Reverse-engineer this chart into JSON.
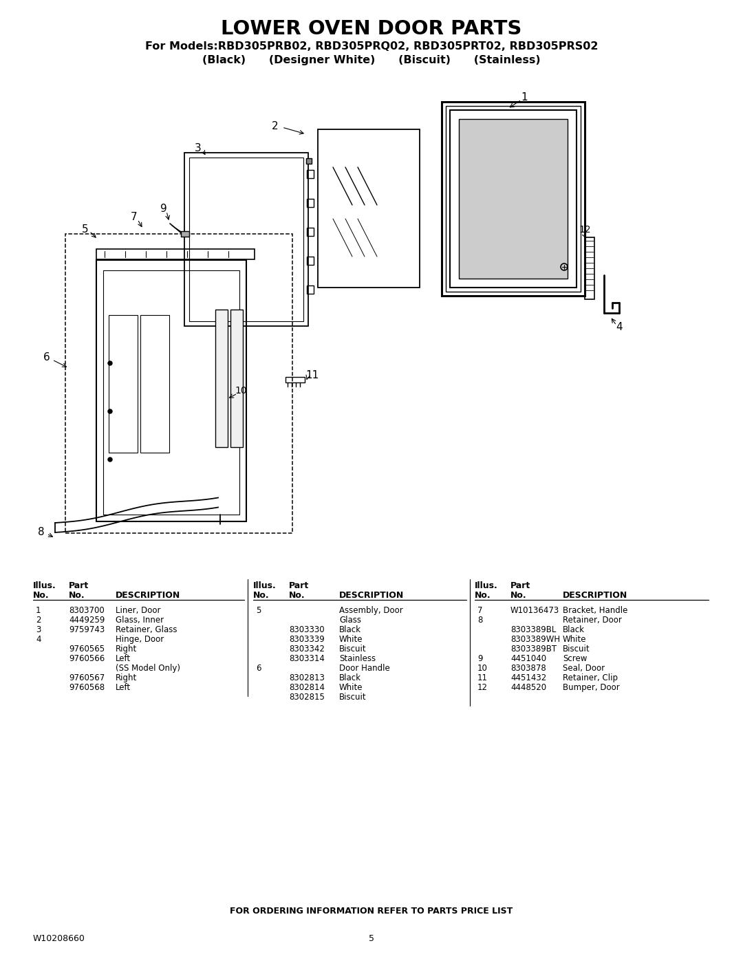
{
  "title_main": "LOWER OVEN DOOR PARTS",
  "title_sub1": "For Models:RBD305PRB02, RBD305PRQ02, RBD305PRT02, RBD305PRS02",
  "title_sub2": "(Black)      (Designer White)      (Biscuit)      (Stainless)",
  "background_color": "#ffffff",
  "page_number": "5",
  "doc_number": "W10208660",
  "footer_text": "FOR ORDERING INFORMATION REFER TO PARTS PRICE LIST",
  "table": {
    "col1": {
      "rows": [
        {
          "illus": "1",
          "part": "8303700",
          "desc": "Liner, Door"
        },
        {
          "illus": "2",
          "part": "4449259",
          "desc": "Glass, Inner"
        },
        {
          "illus": "3",
          "part": "9759743",
          "desc": "Retainer, Glass"
        },
        {
          "illus": "4",
          "part": "",
          "desc": "Hinge, Door"
        },
        {
          "illus": "",
          "part": "9760565",
          "desc": "Right"
        },
        {
          "illus": "",
          "part": "9760566",
          "desc": "Left"
        },
        {
          "illus": "",
          "part": "",
          "desc": "(SS Model Only)"
        },
        {
          "illus": "",
          "part": "9760567",
          "desc": "Right"
        },
        {
          "illus": "",
          "part": "9760568",
          "desc": "Left"
        }
      ]
    },
    "col2": {
      "rows": [
        {
          "illus": "5",
          "part": "",
          "desc": "Assembly, Door"
        },
        {
          "illus": "",
          "part": "",
          "desc": "Glass"
        },
        {
          "illus": "",
          "part": "8303330",
          "desc": "Black"
        },
        {
          "illus": "",
          "part": "8303339",
          "desc": "White"
        },
        {
          "illus": "",
          "part": "8303342",
          "desc": "Biscuit"
        },
        {
          "illus": "",
          "part": "8303314",
          "desc": "Stainless"
        },
        {
          "illus": "6",
          "part": "",
          "desc": "Door Handle"
        },
        {
          "illus": "",
          "part": "8302813",
          "desc": "Black"
        },
        {
          "illus": "",
          "part": "8302814",
          "desc": "White"
        },
        {
          "illus": "",
          "part": "8302815",
          "desc": "Biscuit"
        }
      ]
    },
    "col3": {
      "rows": [
        {
          "illus": "7",
          "part": "W10136473",
          "desc": "Bracket, Handle"
        },
        {
          "illus": "8",
          "part": "",
          "desc": "Retainer, Door"
        },
        {
          "illus": "",
          "part": "8303389BL",
          "desc": "Black"
        },
        {
          "illus": "",
          "part": "8303389WH",
          "desc": "White"
        },
        {
          "illus": "",
          "part": "8303389BT",
          "desc": "Biscuit"
        },
        {
          "illus": "9",
          "part": "4451040",
          "desc": "Screw"
        },
        {
          "illus": "10",
          "part": "8303878",
          "desc": "Seal, Door"
        },
        {
          "illus": "11",
          "part": "4451432",
          "desc": "Retainer, Clip"
        },
        {
          "illus": "12",
          "part": "4448520",
          "desc": "Bumper, Door"
        }
      ]
    }
  }
}
